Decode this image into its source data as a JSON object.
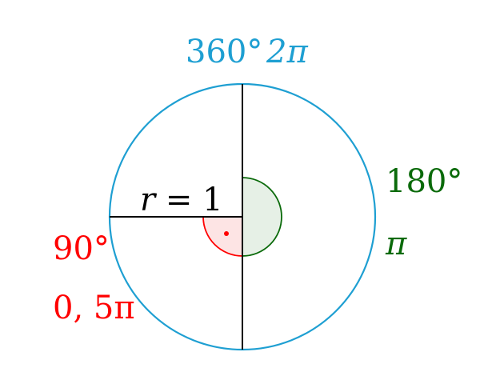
{
  "diagram": {
    "top_label": {
      "degrees": "360°",
      "radians": "2π"
    },
    "right_label": {
      "degrees": "180°",
      "radians": "π"
    },
    "left_label": {
      "degrees": "90°",
      "radians": "0, 5π"
    },
    "radius_label": {
      "variable": "r",
      "equals": " = 1"
    }
  },
  "colors": {
    "circle": "#1e9fd2",
    "black": "#000000",
    "right_angle_stroke": "#ff0000",
    "right_angle_fill": "#fde4e4",
    "straight_angle_stroke": "#0a6a0a",
    "straight_angle_fill": "#e6f0e6",
    "top_text": "#1e9fd2",
    "right_text": "#0a6a0a",
    "left_text": "#ff0000"
  }
}
